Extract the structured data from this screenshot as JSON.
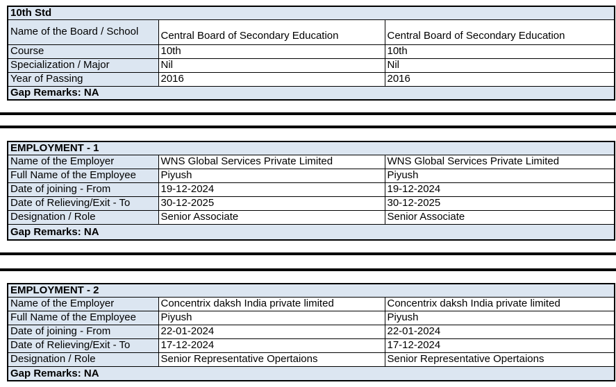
{
  "colors": {
    "cell_fill": "#dce6f1",
    "border": "#000000",
    "background": "#ffffff",
    "text": "#000000"
  },
  "sections": [
    {
      "title": "10th Std",
      "rows": [
        {
          "label": "Name of the Board / School",
          "values": [
            "Central Board of Secondary Education",
            "Central Board of Secondary Education"
          ]
        },
        {
          "label": "Course",
          "values": [
            "10th",
            "10th"
          ]
        },
        {
          "label": "Specialization / Major",
          "values": [
            "Nil",
            "Nil"
          ]
        },
        {
          "label": "Year of Passing",
          "values": [
            "2016",
            "2016"
          ]
        }
      ],
      "gap_remarks": "Gap Remarks: NA"
    },
    {
      "title": "EMPLOYMENT - 1",
      "rows": [
        {
          "label": "Name of the Employer",
          "values": [
            "WNS Global Services Private Limited",
            "WNS Global Services Private Limited"
          ]
        },
        {
          "label": "Full Name of the Employee",
          "values": [
            "Piyush",
            "Piyush"
          ]
        },
        {
          "label": "Date of joining - From",
          "values": [
            "19-12-2024",
            "19-12-2024"
          ]
        },
        {
          "label": "Date of Relieving/Exit - To",
          "values": [
            "30-12-2025",
            "30-12-2025"
          ]
        },
        {
          "label": "Designation / Role",
          "values": [
            "Senior Associate",
            "Senior Associate"
          ]
        }
      ],
      "gap_remarks": "Gap Remarks: NA"
    },
    {
      "title": "EMPLOYMENT - 2",
      "rows": [
        {
          "label": "Name of the Employer",
          "values": [
            "Concentrix daksh India private limited",
            "Concentrix daksh India private limited"
          ]
        },
        {
          "label": "Full Name of the Employee",
          "values": [
            "Piyush",
            "Piyush"
          ]
        },
        {
          "label": "Date of joining - From",
          "values": [
            "22-01-2024",
            "22-01-2024"
          ]
        },
        {
          "label": "Date of Relieving/Exit - To",
          "values": [
            "17-12-2024",
            "17-12-2024"
          ]
        },
        {
          "label": "Designation / Role",
          "values": [
            "Senior Representative Opertaions",
            "Senior Representative Opertaions"
          ]
        }
      ],
      "gap_remarks": "Gap Remarks: NA"
    }
  ]
}
